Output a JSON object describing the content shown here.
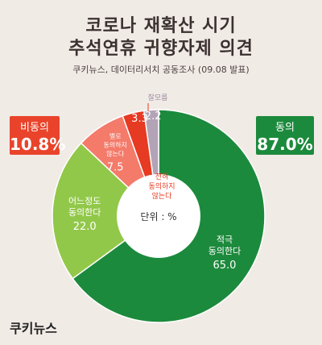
{
  "header": {
    "title_line1": "코로나 재확산 시기",
    "title_line2": "추석연휴 귀향자제 의견",
    "source": "쿠키뉴스, 데이터리서치 공동조사 (09.08 발표)"
  },
  "badges": {
    "agree_label": "동의",
    "agree_value": "87.0%",
    "disagree_label": "비동의",
    "disagree_value": "10.8%"
  },
  "center_label": "단위 : %",
  "logo_text": "쿠키뉴스",
  "colors": {
    "strongly_agree": "#1c8a3c",
    "somewhat_agree": "#92c84a",
    "somewhat_disagree": "#f47a6a",
    "strongly_disagree": "#e63a22",
    "dont_know": "#b3a3b6",
    "agree_badge": "#1c8a3c",
    "disagree_badge": "#e9442b"
  },
  "chart_data": {
    "type": "pie",
    "categories": [
      "적극 동의한다",
      "어느정도 동의한다",
      "별로 동의하지 않는다",
      "전혀 동의하지 않는다",
      "잘모름"
    ],
    "values": [
      65.0,
      22.0,
      7.5,
      3.3,
      2.2
    ],
    "value_labels": [
      "65.0",
      "22.0",
      "7.5",
      "3.3",
      "2.2"
    ],
    "unit": "%"
  }
}
